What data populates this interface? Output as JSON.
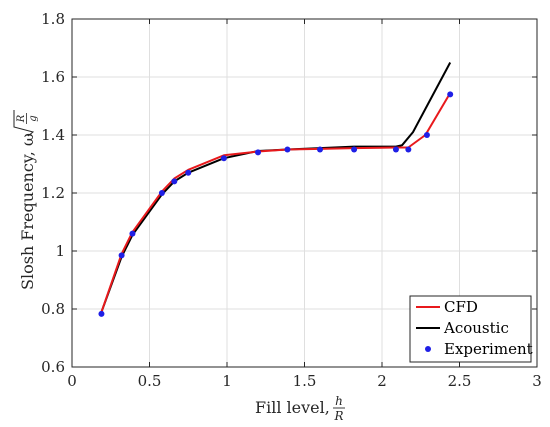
{
  "chart_data": {
    "type": "line",
    "title": "",
    "xlabel": "Fill level, h/R",
    "ylabel": "Slosh Frequency, ω√(R/g)",
    "xlim": [
      0,
      3
    ],
    "ylim": [
      0.6,
      1.8
    ],
    "xticks": [
      0,
      0.5,
      1,
      1.5,
      2,
      2.5,
      3
    ],
    "xtick_labels": [
      "0",
      "0.5",
      "1",
      "1.5",
      "2",
      "2.5",
      "3"
    ],
    "yticks": [
      0.6,
      0.8,
      1,
      1.2,
      1.4,
      1.6,
      1.8
    ],
    "ytick_labels": [
      "0.6",
      "0.8",
      "1",
      "1.2",
      "1.4",
      "1.6",
      "1.8"
    ],
    "grid": true,
    "legend_position": "bottom-right",
    "series": [
      {
        "name": "CFD",
        "style": "line",
        "color": "#e8191c",
        "x": [
          0.19,
          0.32,
          0.39,
          0.58,
          0.66,
          0.75,
          0.98,
          1.2,
          1.39,
          1.6,
          1.82,
          2.09,
          2.17,
          2.28,
          2.44
        ],
        "y": [
          0.79,
          0.99,
          1.065,
          1.205,
          1.25,
          1.28,
          1.33,
          1.343,
          1.35,
          1.352,
          1.355,
          1.357,
          1.357,
          1.4,
          1.545
        ]
      },
      {
        "name": "Acoustic",
        "style": "line",
        "color": "#000000",
        "x": [
          0.19,
          0.32,
          0.39,
          0.58,
          0.66,
          0.75,
          0.98,
          1.2,
          1.39,
          1.6,
          1.82,
          2.09,
          2.13,
          2.2,
          2.28,
          2.44
        ],
        "y": [
          0.79,
          0.98,
          1.055,
          1.195,
          1.24,
          1.27,
          1.32,
          1.345,
          1.35,
          1.355,
          1.36,
          1.36,
          1.365,
          1.41,
          1.49,
          1.65
        ]
      },
      {
        "name": "Experiment",
        "style": "scatter",
        "color": "#1f1fe6",
        "x": [
          0.19,
          0.32,
          0.39,
          0.58,
          0.66,
          0.75,
          0.98,
          1.2,
          1.39,
          1.6,
          1.82,
          2.09,
          2.17,
          2.29,
          2.44
        ],
        "y": [
          0.783,
          0.985,
          1.06,
          1.2,
          1.24,
          1.27,
          1.32,
          1.34,
          1.35,
          1.35,
          1.35,
          1.35,
          1.35,
          1.4,
          1.54
        ]
      }
    ]
  }
}
